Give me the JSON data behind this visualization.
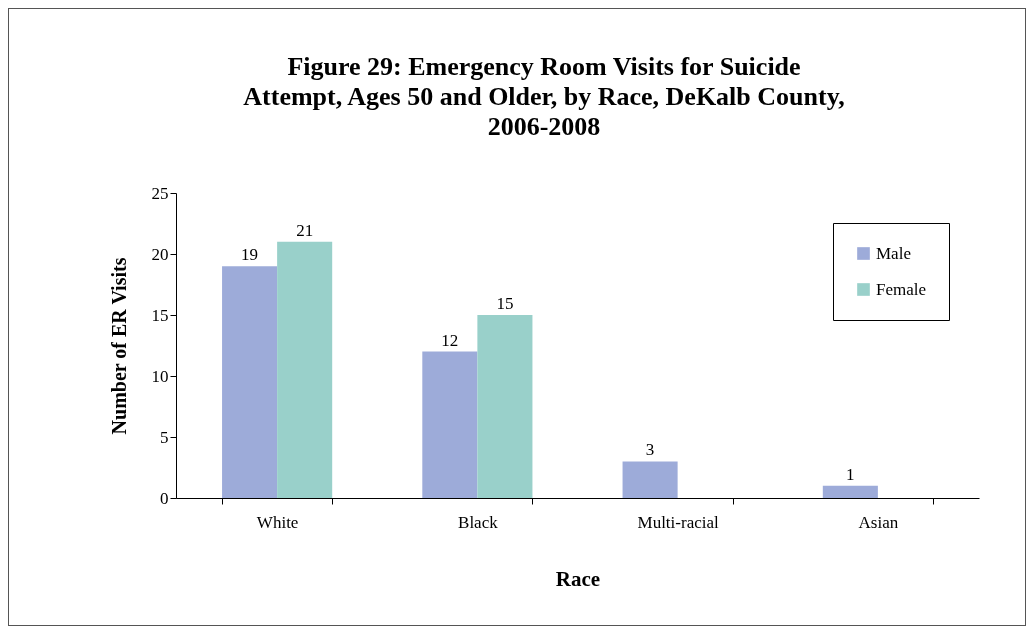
{
  "chart_data": {
    "type": "bar",
    "title": "Figure 29: Emergency Room Visits for Suicide Attempt, Ages 50 and Older, by Race, DeKalb County, 2006-2008",
    "xlabel": "Race",
    "ylabel": "Number of ER Visits",
    "categories": [
      "White",
      "Black",
      "Multi-racial",
      "Asian"
    ],
    "series": [
      {
        "name": "Male",
        "color": "#9dabd9",
        "values": [
          19,
          12,
          3,
          1
        ]
      },
      {
        "name": "Female",
        "color": "#99d0ca",
        "values": [
          21,
          15,
          null,
          null
        ]
      }
    ],
    "ylim": [
      0,
      25
    ],
    "yticks": [
      0,
      5,
      10,
      15,
      20,
      25
    ],
    "grid": false,
    "legend": "top right",
    "data_labels": true
  }
}
